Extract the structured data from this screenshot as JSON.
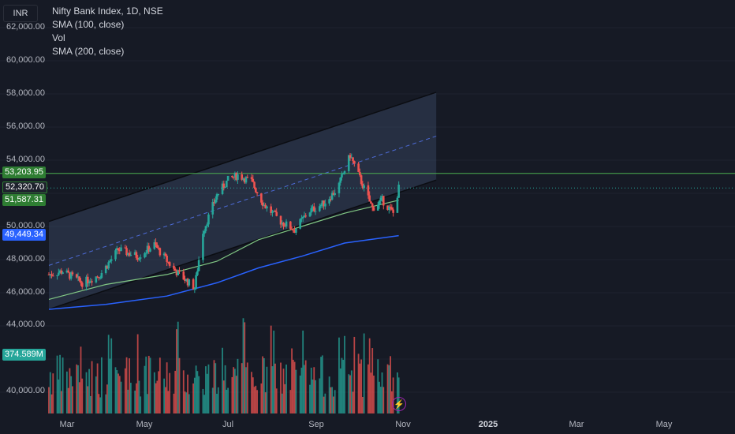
{
  "header": {
    "currency": "INR",
    "symbol_title": "Nifty Bank Index, 1D, NSE",
    "indicator_sma100": "SMA (100, close)",
    "indicator_vol": "Vol",
    "indicator_sma200": "SMA (200, close)"
  },
  "price_axis": {
    "ticks": [
      "62,000.00",
      "60,000.00",
      "58,000.00",
      "56,000.00",
      "54,000.00",
      "50,000.00",
      "48,000.00",
      "46,000.00",
      "44,000.00",
      "40,000.00"
    ]
  },
  "time_axis": {
    "ticks": [
      "Mar",
      "May",
      "Jul",
      "Sep",
      "Nov",
      "2025",
      "Mar",
      "May"
    ]
  },
  "badges": {
    "upper_band": "53,203.95",
    "last_price": "52,320.70",
    "sma100_value": "51,587.31",
    "sma200_value": "49,449.34",
    "volume_value": "374.589M"
  },
  "colors": {
    "background": "#161a25",
    "up_candle": "#26a69a",
    "down_candle": "#ef5350",
    "sma100": "#81c784",
    "sma200": "#2962ff",
    "channel_fill": "#3a4a66",
    "horizontal_line": "#4caf50",
    "badge_green": "#2e7d32",
    "badge_blue": "#2962ff",
    "badge_teal": "#26a69a",
    "badge_dark": "#1e222d"
  },
  "chart_data": {
    "type": "candlestick",
    "title": "Nifty Bank Index, 1D, NSE",
    "price_ylim": [
      38500,
      62500
    ],
    "x_range_dates": [
      "2024-02-20",
      "2025-06-10"
    ],
    "channel": {
      "upper_start": {
        "date": "2024-02-20",
        "price": 50300
      },
      "upper_end": {
        "date": "2024-11-25",
        "price": 58100
      },
      "lower_start": {
        "date": "2024-02-20",
        "price": 45000
      },
      "lower_end": {
        "date": "2024-11-25",
        "price": 52800
      }
    },
    "horizontal_level": 53203.95,
    "last_price": 52320.7,
    "close_series": [
      [
        "2024-02-20",
        47100
      ],
      [
        "2024-03-01",
        47300
      ],
      [
        "2024-03-15",
        46600
      ],
      [
        "2024-03-28",
        47100
      ],
      [
        "2024-04-10",
        48600
      ],
      [
        "2024-04-24",
        48200
      ],
      [
        "2024-05-06",
        48900
      ],
      [
        "2024-05-20",
        47400
      ],
      [
        "2024-06-04",
        46300
      ],
      [
        "2024-06-10",
        49700
      ],
      [
        "2024-06-20",
        51900
      ],
      [
        "2024-06-28",
        52800
      ],
      [
        "2024-07-05",
        53100
      ],
      [
        "2024-07-15",
        52700
      ],
      [
        "2024-07-24",
        51300
      ],
      [
        "2024-08-05",
        50300
      ],
      [
        "2024-08-15",
        49800
      ],
      [
        "2024-08-25",
        50900
      ],
      [
        "2024-09-05",
        51400
      ],
      [
        "2024-09-15",
        52300
      ],
      [
        "2024-09-24",
        54300
      ],
      [
        "2024-10-03",
        52500
      ],
      [
        "2024-10-10",
        51100
      ],
      [
        "2024-10-17",
        51600
      ],
      [
        "2024-10-25",
        50800
      ],
      [
        "2024-10-29",
        52320
      ]
    ],
    "sma100": [
      [
        "2024-02-20",
        45600
      ],
      [
        "2024-04-01",
        46500
      ],
      [
        "2024-05-15",
        47100
      ],
      [
        "2024-06-20",
        47900
      ],
      [
        "2024-07-20",
        49200
      ],
      [
        "2024-08-20",
        50000
      ],
      [
        "2024-09-20",
        50800
      ],
      [
        "2024-10-29",
        51587.31
      ]
    ],
    "sma200": [
      [
        "2024-02-20",
        45000
      ],
      [
        "2024-04-01",
        45300
      ],
      [
        "2024-05-15",
        45800
      ],
      [
        "2024-06-20",
        46600
      ],
      [
        "2024-07-20",
        47500
      ],
      [
        "2024-08-20",
        48200
      ],
      [
        "2024-09-20",
        49000
      ],
      [
        "2024-10-29",
        49449.34
      ]
    ],
    "volume_last": "374.589M"
  }
}
